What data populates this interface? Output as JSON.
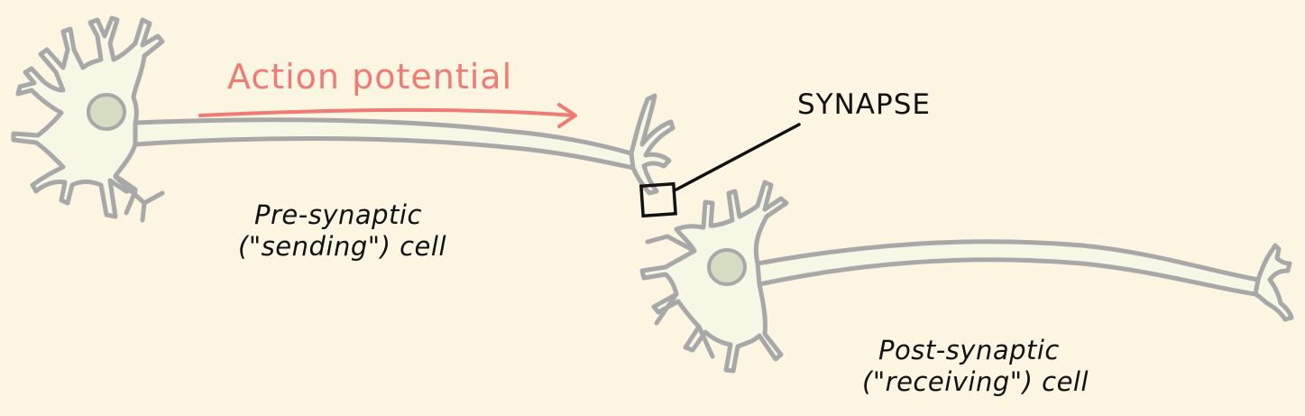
{
  "diagram": {
    "action_potential_label": "Action potential",
    "synapse_label": "SYNAPSE",
    "presynaptic_label_line1": "Pre-synaptic",
    "presynaptic_label_line2": "(\"sending\") cell",
    "postsynaptic_label_line1": "Post-synaptic",
    "postsynaptic_label_line2": "(\"receiving\") cell"
  },
  "colors": {
    "background": "#fcf5e1",
    "neuron_fill": "#f7f7e6",
    "neuron_outline": "#a8a8a8",
    "nucleus": "#d6dcc2",
    "action_potential": "#ee7b74",
    "ink": "#111111"
  }
}
